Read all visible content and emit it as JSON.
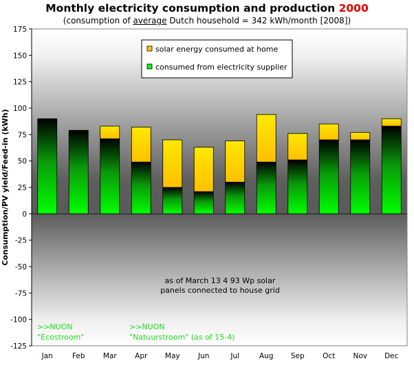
{
  "chart_data": {
    "type": "bar",
    "title_main": "Monthly electricity consumption and production",
    "title_year": "2000",
    "subtitle_pre": "(consumption of ",
    "subtitle_ul": "average",
    "subtitle_post": " Dutch household = 342 kWh/month [2008])",
    "ylabel": "Consumption/PV yield/Feed-in (kWh)",
    "ylim": [
      -125,
      175
    ],
    "yticks": [
      175,
      150,
      125,
      100,
      75,
      50,
      25,
      0,
      -25,
      -50,
      -75,
      -100,
      -125
    ],
    "categories": [
      "Jan",
      "Feb",
      "Mar",
      "Apr",
      "May",
      "Jun",
      "Jul",
      "Aug",
      "Sep",
      "Oct",
      "Nov",
      "Dec"
    ],
    "stacked": true,
    "series": [
      {
        "name": "consumed from electricity supplier",
        "color": "#00ff00",
        "values": [
          90,
          79,
          71,
          49,
          25,
          21,
          30,
          49,
          51,
          70,
          70,
          83
        ]
      },
      {
        "name": "solar energy consumed at home",
        "color": "#ffcc00",
        "values": [
          0,
          0,
          12,
          33,
          45,
          42,
          39,
          45,
          25,
          15,
          7,
          7
        ]
      }
    ],
    "legend_position": "top-center",
    "annotations": {
      "center_line1": "as of March 13 4 93 Wp solar",
      "center_line2": "panels connected to house grid",
      "nuon1_line1": ">>NUON",
      "nuon1_line2": "\"Ecostroom\"",
      "nuon2_line1": ">>NUON",
      "nuon2_line2": "\"Natuurstroom\" (as of 15-4)"
    }
  }
}
